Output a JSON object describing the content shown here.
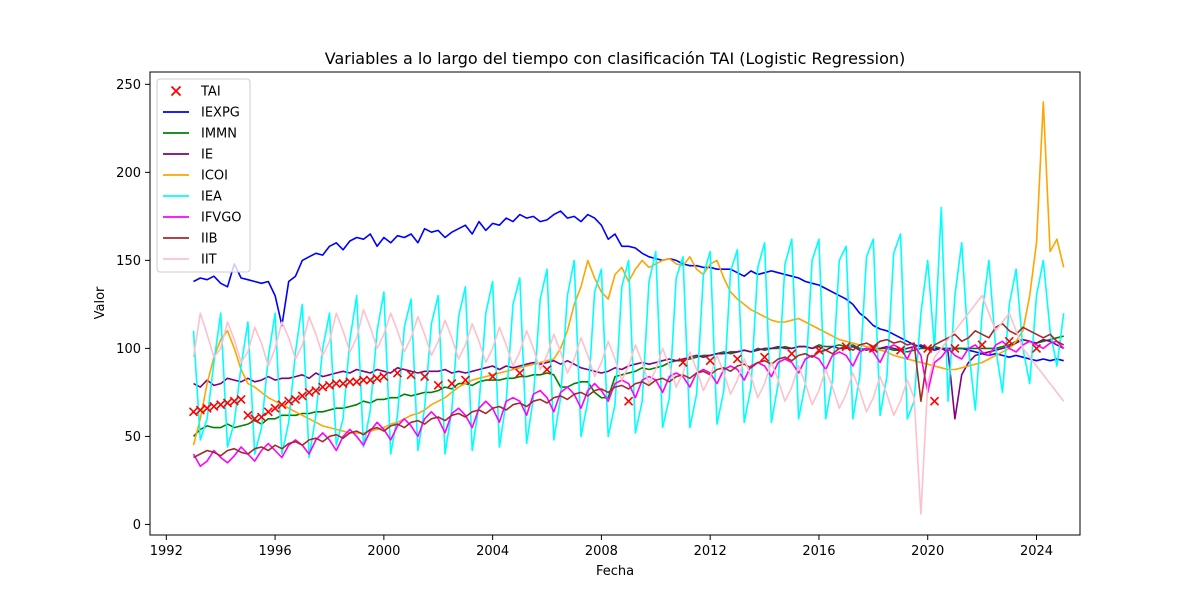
{
  "chart_data": {
    "type": "line",
    "title": "Variables a lo largo del tiempo con clasificación TAI (Logistic Regression)",
    "xlabel": "Fecha",
    "ylabel": "Valor",
    "xlim": [
      1991.4,
      2025.6
    ],
    "ylim": [
      -6,
      257
    ],
    "x_ticks": [
      1992,
      1996,
      2000,
      2004,
      2008,
      2012,
      2016,
      2020,
      2024
    ],
    "y_ticks": [
      0,
      50,
      100,
      150,
      200,
      250
    ],
    "grid": false,
    "legend_position": "top-left",
    "legend": [
      "TAI",
      "IEXPG",
      "IMMN",
      "IE",
      "ICOI",
      "IEA",
      "IFVGO",
      "IIB",
      "IIT"
    ],
    "x_start": 1993.0,
    "x_step": 0.25,
    "series": [
      {
        "name": "IEXPG",
        "color": "#0000ff",
        "values": [
          138,
          140,
          139,
          141,
          137,
          135,
          148,
          140,
          139,
          138,
          137,
          138,
          130,
          113,
          138,
          141,
          150,
          152,
          154,
          153,
          158,
          160,
          156,
          161,
          163,
          162,
          165,
          158,
          163,
          160,
          164,
          163,
          165,
          160,
          168,
          166,
          167,
          163,
          166,
          168,
          170,
          165,
          172,
          167,
          171,
          170,
          174,
          172,
          176,
          174,
          175,
          172,
          173,
          176,
          178,
          174,
          175,
          172,
          176,
          174,
          170,
          162,
          165,
          158,
          158,
          157,
          154,
          152,
          151,
          150,
          151,
          150,
          148,
          147,
          147,
          146,
          146,
          145,
          145,
          145,
          143,
          141,
          144,
          142,
          143,
          144,
          143,
          142,
          141,
          140,
          138,
          137,
          136,
          134,
          132,
          130,
          128,
          125,
          120,
          117,
          113,
          111,
          110,
          108,
          106,
          104,
          102,
          101,
          100,
          100,
          100,
          100,
          100,
          100,
          99,
          98,
          97,
          96,
          97,
          96,
          95,
          96,
          95,
          94,
          93,
          94,
          93,
          94,
          93
        ]
      },
      {
        "name": "IMMN",
        "color": "#008000",
        "values": [
          50,
          54,
          56,
          55,
          55,
          57,
          55,
          56,
          57,
          59,
          57,
          60,
          60,
          62,
          62,
          62,
          63,
          63,
          64,
          64,
          65,
          66,
          66,
          67,
          68,
          70,
          69,
          71,
          71,
          72,
          72,
          74,
          73,
          74,
          75,
          75,
          76,
          78,
          77,
          80,
          80,
          79,
          81,
          82,
          82,
          82,
          83,
          83,
          84,
          84,
          85,
          85,
          86,
          85,
          78,
          78,
          80,
          81,
          81,
          75,
          72,
          72,
          84,
          85,
          86,
          87,
          89,
          88,
          89,
          90,
          92,
          93,
          93,
          94,
          95,
          96,
          96,
          97,
          98,
          97,
          98,
          99,
          98,
          100,
          99,
          100,
          100,
          101,
          100,
          101,
          101,
          100,
          102,
          101,
          101,
          102,
          101,
          102,
          100,
          99,
          100,
          100,
          100,
          99,
          99,
          98,
          99,
          100,
          100,
          101,
          100,
          99,
          100,
          100,
          100,
          100,
          100,
          100,
          100,
          101,
          102,
          104,
          105,
          104,
          103,
          104,
          105,
          106,
          107
        ]
      },
      {
        "name": "IE",
        "color": "#800080",
        "values": [
          80,
          78,
          82,
          79,
          80,
          83,
          82,
          81,
          83,
          81,
          82,
          84,
          82,
          83,
          83,
          84,
          85,
          83,
          86,
          84,
          85,
          86,
          87,
          86,
          88,
          87,
          86,
          88,
          87,
          86,
          89,
          88,
          87,
          86,
          87,
          87,
          87,
          88,
          86,
          87,
          86,
          87,
          88,
          89,
          90,
          88,
          90,
          89,
          90,
          91,
          92,
          91,
          92,
          93,
          91,
          93,
          91,
          89,
          88,
          87,
          86,
          87,
          89,
          88,
          90,
          91,
          92,
          91,
          92,
          93,
          94,
          93,
          94,
          95,
          96,
          95,
          96,
          97,
          97,
          98,
          98,
          99,
          98,
          99,
          100,
          100,
          101,
          100,
          100,
          101,
          101,
          100,
          101,
          99,
          101,
          100,
          100,
          101,
          99,
          100,
          99,
          100,
          101,
          100,
          99,
          100,
          101,
          102,
          100,
          99,
          100,
          98,
          60,
          85,
          92,
          96,
          97,
          98,
          99,
          100,
          101,
          103,
          105,
          104,
          103,
          105,
          104,
          102,
          100
        ]
      },
      {
        "name": "ICOI",
        "color": "#ffa500",
        "values": [
          45,
          60,
          80,
          95,
          105,
          110,
          100,
          88,
          80,
          78,
          75,
          72,
          70,
          68,
          66,
          64,
          62,
          60,
          58,
          56,
          55,
          54,
          53,
          52,
          52,
          52,
          53,
          54,
          55,
          57,
          58,
          60,
          62,
          63,
          65,
          68,
          70,
          72,
          75,
          78,
          80,
          82,
          83,
          84,
          85,
          86,
          87,
          88,
          89,
          90,
          91,
          92,
          93,
          94,
          100,
          110,
          125,
          135,
          150,
          140,
          132,
          128,
          142,
          146,
          138,
          145,
          150,
          146,
          148,
          150,
          151,
          148,
          147,
          152,
          145,
          142,
          148,
          150,
          140,
          132,
          128,
          125,
          122,
          120,
          118,
          116,
          115,
          115,
          116,
          117,
          115,
          113,
          111,
          109,
          107,
          105,
          104,
          103,
          102,
          101,
          100,
          99,
          98,
          96,
          95,
          94,
          93,
          92,
          91,
          90,
          89,
          88,
          88,
          89,
          90,
          91,
          92,
          94,
          96,
          98,
          100,
          104,
          110,
          130,
          160,
          240,
          155,
          162,
          146
        ]
      },
      {
        "name": "IEA",
        "color": "#00ffff",
        "values": [
          110,
          48,
          60,
          92,
          120,
          44,
          58,
          90,
          115,
          40,
          55,
          95,
          120,
          40,
          58,
          98,
          125,
          38,
          62,
          100,
          120,
          45,
          60,
          105,
          130,
          44,
          65,
          110,
          132,
          40,
          62,
          112,
          128,
          42,
          66,
          114,
          130,
          40,
          65,
          118,
          135,
          42,
          68,
          120,
          138,
          44,
          70,
          125,
          140,
          46,
          72,
          128,
          145,
          48,
          72,
          130,
          150,
          50,
          70,
          132,
          145,
          50,
          68,
          135,
          150,
          52,
          70,
          138,
          155,
          55,
          72,
          140,
          152,
          55,
          74,
          142,
          155,
          57,
          76,
          144,
          156,
          58,
          78,
          146,
          160,
          58,
          80,
          148,
          162,
          60,
          80,
          150,
          162,
          60,
          82,
          150,
          158,
          60,
          84,
          152,
          162,
          62,
          84,
          154,
          165,
          60,
          70,
          120,
          150,
          100,
          180,
          70,
          130,
          160,
          100,
          65,
          120,
          150,
          100,
          75,
          125,
          145,
          100,
          80,
          130,
          150,
          110,
          90,
          120
        ]
      },
      {
        "name": "IFVGO",
        "color": "#ff00ff",
        "values": [
          40,
          33,
          36,
          42,
          38,
          35,
          39,
          44,
          40,
          36,
          42,
          46,
          42,
          38,
          45,
          48,
          45,
          40,
          48,
          52,
          48,
          42,
          50,
          54,
          50,
          45,
          53,
          58,
          54,
          48,
          56,
          60,
          56,
          50,
          60,
          64,
          60,
          52,
          63,
          66,
          62,
          55,
          66,
          70,
          66,
          58,
          70,
          72,
          70,
          62,
          74,
          76,
          72,
          64,
          75,
          78,
          74,
          66,
          76,
          80,
          76,
          70,
          80,
          82,
          80,
          72,
          82,
          84,
          82,
          75,
          84,
          86,
          84,
          78,
          86,
          88,
          86,
          80,
          88,
          90,
          88,
          82,
          90,
          92,
          90,
          84,
          92,
          94,
          92,
          86,
          94,
          96,
          94,
          88,
          96,
          98,
          96,
          90,
          98,
          100,
          98,
          92,
          100,
          102,
          100,
          94,
          102,
          96,
          75,
          92,
          95,
          100,
          96,
          94,
          100,
          102,
          98,
          96,
          102,
          104,
          100,
          98,
          102,
          104,
          102,
          100,
          103,
          104,
          100
        ]
      },
      {
        "name": "IIB",
        "color": "#a52a2a",
        "values": [
          38,
          40,
          42,
          41,
          39,
          42,
          43,
          41,
          40,
          43,
          44,
          42,
          45,
          43,
          46,
          47,
          45,
          48,
          49,
          47,
          50,
          51,
          49,
          52,
          53,
          51,
          54,
          55,
          53,
          56,
          57,
          55,
          58,
          59,
          57,
          60,
          61,
          59,
          62,
          63,
          61,
          64,
          65,
          63,
          66,
          67,
          65,
          68,
          69,
          67,
          70,
          71,
          69,
          72,
          73,
          71,
          74,
          75,
          73,
          76,
          77,
          75,
          78,
          79,
          77,
          80,
          81,
          79,
          82,
          83,
          81,
          84,
          85,
          83,
          86,
          87,
          85,
          88,
          89,
          87,
          90,
          91,
          89,
          92,
          93,
          91,
          94,
          95,
          93,
          96,
          97,
          95,
          98,
          99,
          97,
          100,
          101,
          99,
          102,
          103,
          101,
          104,
          105,
          103,
          104,
          102,
          103,
          70,
          96,
          102,
          104,
          106,
          108,
          104,
          106,
          110,
          108,
          106,
          112,
          114,
          110,
          108,
          112,
          110,
          108,
          106,
          108,
          104,
          102
        ]
      },
      {
        "name": "IIT",
        "color": "#ffc0cb",
        "values": [
          95,
          120,
          108,
          95,
          100,
          115,
          105,
          92,
          98,
          112,
          103,
          90,
          100,
          115,
          106,
          94,
          102,
          118,
          108,
          96,
          104,
          120,
          110,
          98,
          106,
          122,
          112,
          100,
          108,
          120,
          110,
          98,
          106,
          118,
          108,
          96,
          104,
          116,
          106,
          94,
          102,
          114,
          104,
          92,
          100,
          112,
          102,
          90,
          98,
          110,
          100,
          88,
          96,
          108,
          98,
          86,
          94,
          106,
          96,
          84,
          92,
          104,
          94,
          82,
          90,
          102,
          92,
          80,
          88,
          100,
          90,
          78,
          86,
          98,
          88,
          76,
          84,
          96,
          86,
          74,
          82,
          94,
          84,
          72,
          80,
          92,
          82,
          70,
          78,
          90,
          80,
          68,
          76,
          88,
          78,
          66,
          74,
          86,
          76,
          64,
          72,
          84,
          74,
          62,
          70,
          82,
          72,
          6,
          80,
          95,
          100,
          105,
          110,
          115,
          120,
          125,
          130,
          120,
          110,
          115,
          120,
          110,
          100,
          95,
          90,
          85,
          80,
          75,
          70
        ]
      }
    ],
    "tai_points": {
      "name": "TAI",
      "color": "#ff0000",
      "marker": "x",
      "x": [
        1993.0,
        1993.25,
        1993.5,
        1993.75,
        1994.0,
        1994.25,
        1994.5,
        1994.75,
        1995.0,
        1995.25,
        1995.5,
        1995.75,
        1996.0,
        1996.25,
        1996.5,
        1996.75,
        1997.0,
        1997.25,
        1997.5,
        1997.75,
        1998.0,
        1998.25,
        1998.5,
        1998.75,
        1999.0,
        1999.25,
        1999.5,
        1999.75,
        2000.0,
        2000.5,
        2001.0,
        2001.5,
        2002.0,
        2002.5,
        2003.0,
        2004.0,
        2005.0,
        2006.0,
        2009.0,
        2011.0,
        2012.0,
        2013.0,
        2014.0,
        2015.0,
        2016.0,
        2017.0,
        2018.0,
        2019.0,
        2020.0,
        2020.25,
        2021.0,
        2022.0,
        2023.0,
        2024.0
      ],
      "y": [
        64,
        65,
        66,
        67,
        68,
        69,
        70,
        71,
        62,
        60,
        61,
        64,
        66,
        68,
        70,
        71,
        73,
        75,
        76,
        78,
        79,
        80,
        80,
        81,
        81,
        82,
        82,
        83,
        84,
        86,
        85,
        84,
        79,
        80,
        82,
        84,
        86,
        88,
        70,
        92,
        93,
        94,
        95,
        97,
        99,
        101,
        100,
        99,
        100,
        70,
        100,
        102,
        104,
        100
      ]
    }
  }
}
